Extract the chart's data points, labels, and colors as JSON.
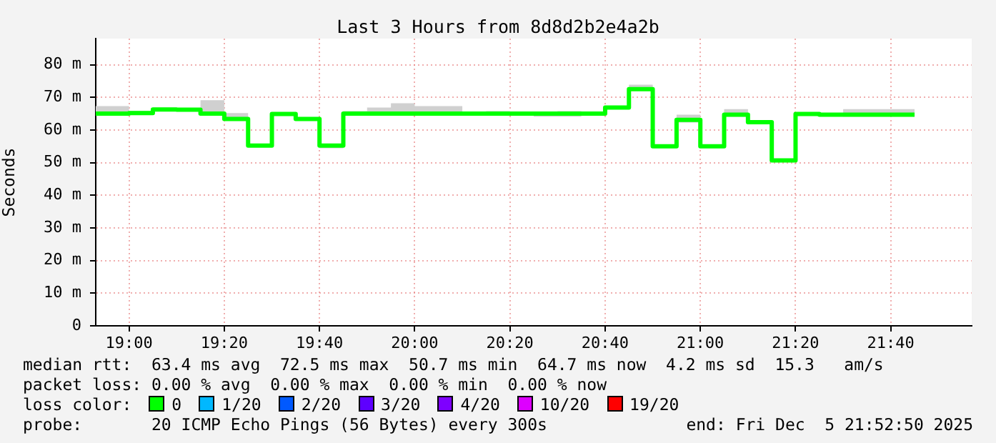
{
  "chart_data": {
    "type": "step",
    "title": "Last 3 Hours from 8d8d2b2e4a2b",
    "ylabel": "Seconds",
    "legend_title": "loss color:",
    "legend": "bottom",
    "grid": true,
    "marker": "none",
    "x": [
      18.8833,
      19,
      19.0833,
      19.1667,
      19.25,
      19.3333,
      19.4167,
      19.5,
      19.5833,
      19.6667,
      19.75,
      19.8333,
      19.9167,
      20,
      20.0833,
      20.1667,
      20.25,
      20.3333,
      20.4167,
      20.5,
      20.5833,
      20.6667,
      20.75,
      20.8333,
      20.9167,
      21,
      21.0833,
      21.1667,
      21.25,
      21.3333,
      21.4167,
      21.5,
      21.5833,
      21.6667,
      21.75
    ],
    "xlim": [
      18.8833,
      21.95
    ],
    "xticks": [
      {
        "value": 19,
        "label": "19:00"
      },
      {
        "value": 19.3333,
        "label": "19:20"
      },
      {
        "value": 19.6667,
        "label": "19:40"
      },
      {
        "value": 20,
        "label": "20:00"
      },
      {
        "value": 20.3333,
        "label": "20:20"
      },
      {
        "value": 20.6667,
        "label": "20:40"
      },
      {
        "value": 21,
        "label": "21:00"
      },
      {
        "value": 21.3333,
        "label": "21:20"
      },
      {
        "value": 21.6667,
        "label": "21:40"
      }
    ],
    "ylim": [
      0,
      88
    ],
    "yticks": [
      0,
      {
        "value": 10,
        "label": "10 m"
      },
      {
        "value": 20,
        "label": "20 m"
      },
      {
        "value": 30,
        "label": "30 m"
      },
      {
        "value": 40,
        "label": "40 m"
      },
      {
        "value": 50,
        "label": "50 m"
      },
      {
        "value": 60,
        "label": "60 m"
      },
      {
        "value": 70,
        "label": "70 m"
      },
      {
        "value": 80,
        "label": "80 m"
      }
    ],
    "series": [
      {
        "name": "0",
        "color": "#00ff00",
        "values": [
          65.0,
          65.0,
          65.2,
          66.3,
          66.2,
          65.0,
          63.4,
          55.2,
          64.9,
          63.4,
          55.2,
          65.0,
          65.0,
          65.0,
          65.0,
          65.0,
          65.0,
          65.0,
          65.0,
          65.0,
          65.0,
          65.0,
          66.9,
          72.5,
          55.0,
          63.1,
          55.0,
          64.7,
          62.4,
          50.7,
          64.9,
          64.7,
          64.7,
          64.7,
          64.7
        ],
        "lower": [
          65.0,
          65.0,
          65.0,
          66.0,
          66.0,
          65.0,
          63.0,
          55.0,
          64.9,
          63.0,
          54.4,
          65.0,
          65.0,
          65.0,
          65.0,
          65.0,
          65.0,
          65.0,
          65.0,
          64.1,
          64.1,
          65.0,
          66.9,
          72.5,
          55.0,
          62.3,
          55.0,
          64.1,
          62.4,
          50.7,
          64.5,
          64.5,
          64.1,
          64.1,
          64.1
        ],
        "upper": [
          68.2,
          67.3,
          65.9,
          66.9,
          66.5,
          69.1,
          65.2,
          55.5,
          65.2,
          63.6,
          55.7,
          65.8,
          66.9,
          68.2,
          67.3,
          67.3,
          65.2,
          65.8,
          65.3,
          65.5,
          65.8,
          65.3,
          67.2,
          73.9,
          55.6,
          64.7,
          55.3,
          66.4,
          62.7,
          51.0,
          65.3,
          65.0,
          66.4,
          66.4,
          66.4
        ]
      },
      {
        "name": "1/20",
        "color": "#00b8ff",
        "values": [
          null,
          null,
          null,
          null,
          null,
          null,
          null,
          null,
          null,
          null,
          null,
          null,
          null,
          null,
          null,
          null,
          null,
          null,
          null,
          null,
          null,
          null,
          null,
          null,
          null,
          null,
          null,
          null,
          null,
          null,
          null,
          null,
          null,
          null,
          null
        ]
      },
      {
        "name": "2/20",
        "color": "#0059ff",
        "values": [
          null,
          null,
          null,
          null,
          null,
          null,
          null,
          null,
          null,
          null,
          null,
          null,
          null,
          null,
          null,
          null,
          null,
          null,
          null,
          null,
          null,
          null,
          null,
          null,
          null,
          null,
          null,
          null,
          null,
          null,
          null,
          null,
          null,
          null,
          null
        ]
      },
      {
        "name": "3/20",
        "color": "#5e00ff",
        "values": [
          null,
          null,
          null,
          null,
          null,
          null,
          null,
          null,
          null,
          null,
          null,
          null,
          null,
          null,
          null,
          null,
          null,
          null,
          null,
          null,
          null,
          null,
          null,
          null,
          null,
          null,
          null,
          null,
          null,
          null,
          null,
          null,
          null,
          null,
          null
        ]
      },
      {
        "name": "4/20",
        "color": "#7e00ff",
        "values": [
          null,
          null,
          null,
          null,
          null,
          null,
          null,
          null,
          null,
          null,
          null,
          null,
          null,
          null,
          null,
          null,
          null,
          null,
          null,
          null,
          null,
          null,
          null,
          null,
          null,
          null,
          null,
          null,
          null,
          null,
          null,
          null,
          null,
          null,
          null
        ]
      },
      {
        "name": "10/20",
        "color": "#dd00ff",
        "values": [
          null,
          null,
          null,
          null,
          null,
          null,
          null,
          null,
          null,
          null,
          null,
          null,
          null,
          null,
          null,
          null,
          null,
          null,
          null,
          null,
          null,
          null,
          null,
          null,
          null,
          null,
          null,
          null,
          null,
          null,
          null,
          null,
          null,
          null,
          null
        ]
      },
      {
        "name": "19/20",
        "color": "#ff0000",
        "values": [
          null,
          null,
          null,
          null,
          null,
          null,
          null,
          null,
          null,
          null,
          null,
          null,
          null,
          null,
          null,
          null,
          null,
          null,
          null,
          null,
          null,
          null,
          null,
          null,
          null,
          null,
          null,
          null,
          null,
          null,
          null,
          null,
          null,
          null,
          null
        ]
      }
    ],
    "annotations": [
      "median rtt:  63.4 ms avg  72.5 ms max  50.7 ms min  64.7 ms now  4.2 ms sd  15.3   am/s",
      "packet loss: 0.00 % avg  0.00 % max  0.00 % min  0.00 % now",
      "probe:       20 ICMP Echo Pings (56 Bytes) every 300s",
      "end: Fri Dec  5 21:52:50 2025"
    ]
  }
}
